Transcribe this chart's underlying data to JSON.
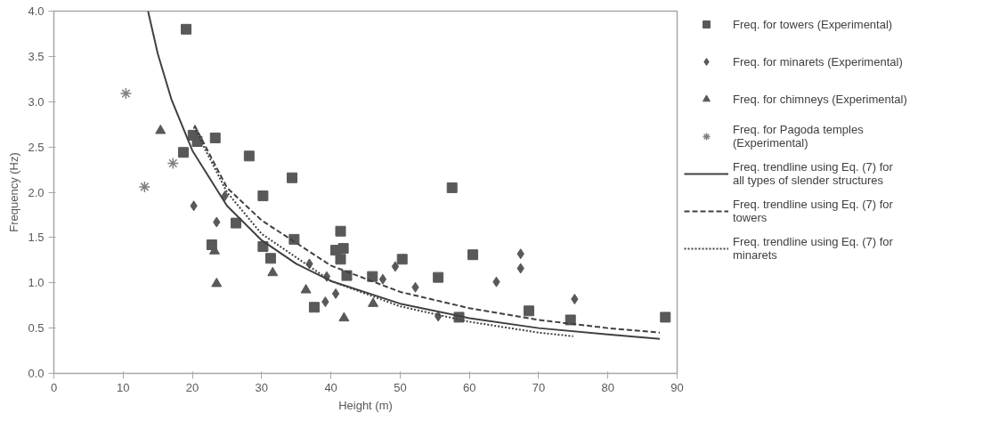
{
  "chart_data": {
    "type": "scatter",
    "xlabel": "Height (m)",
    "ylabel": "Frequency (Hz)",
    "xlim": [
      0,
      90
    ],
    "ylim": [
      0,
      4.0
    ],
    "xticks": [
      0,
      10,
      20,
      30,
      40,
      50,
      60,
      70,
      80,
      90
    ],
    "yticks": [
      {
        "value": 0,
        "label": "0.0"
      },
      {
        "value": 0.5,
        "label": "0.5"
      },
      {
        "value": 1,
        "label": "1.0"
      },
      {
        "value": 1.5,
        "label": "1.5"
      },
      {
        "value": 2,
        "label": "2.0"
      },
      {
        "value": 2.5,
        "label": "2.5"
      },
      {
        "value": 3,
        "label": "3.0"
      },
      {
        "value": 3.5,
        "label": "3.5"
      },
      {
        "value": 4,
        "label": "4.0"
      }
    ],
    "grid": false,
    "legend": "right",
    "series": [
      {
        "name": "Freq. for towers (Experimental)",
        "marker": "square",
        "color": "#595959",
        "x": [
          19.1,
          20.1,
          20.7,
          23.3,
          18.7,
          28.2,
          34.4,
          30.2,
          26.3,
          22.8,
          34.7,
          30.2,
          31.3,
          41.4,
          40.7,
          41.8,
          41.4,
          50.3,
          42.3,
          46.0,
          37.6,
          55.5,
          57.5,
          60.5,
          58.5,
          68.6,
          74.6,
          88.3
        ],
        "values": [
          3.8,
          2.63,
          2.56,
          2.6,
          2.44,
          2.4,
          2.16,
          1.96,
          1.66,
          1.42,
          1.48,
          1.4,
          1.27,
          1.57,
          1.36,
          1.38,
          1.26,
          1.26,
          1.08,
          1.07,
          0.73,
          1.06,
          2.05,
          1.31,
          0.62,
          0.69,
          0.59,
          0.62
        ]
      },
      {
        "name": "Freq. for minarets (Experimental)",
        "marker": "diamond",
        "color": "#595959",
        "x": [
          20.2,
          23.5,
          24.7,
          39.2,
          40.7,
          47.5,
          49.3,
          52.2,
          55.5,
          63.9,
          36.9,
          39.4,
          67.4,
          67.4,
          75.2
        ],
        "values": [
          1.85,
          1.67,
          1.96,
          0.79,
          0.88,
          1.04,
          1.18,
          0.95,
          0.63,
          1.01,
          1.21,
          1.07,
          1.32,
          1.16,
          0.82
        ]
      },
      {
        "name": "Freq. for chimneys (Experimental)",
        "marker": "triangle",
        "color": "#595959",
        "x": [
          15.4,
          23.2,
          23.5,
          31.6,
          36.4,
          41.9,
          46.1
        ],
        "values": [
          2.68,
          1.35,
          0.99,
          1.11,
          0.92,
          0.61,
          0.77
        ]
      },
      {
        "name": "Freq. for Pagoda temples (Experimental)",
        "marker": "cross",
        "color": "#808080",
        "x": [
          10.4,
          17.2,
          13.1
        ],
        "values": [
          3.09,
          2.32,
          2.06
        ]
      },
      {
        "name": "Freq. trendline using Eq. (7) for all types of slender structures",
        "type": "line",
        "line_style": "solid",
        "color": "#404040",
        "x": [
          13.6,
          15,
          17,
          20,
          25,
          30,
          35,
          40,
          50,
          60,
          70,
          80,
          87.5
        ],
        "values": [
          4.0,
          3.53,
          3.02,
          2.46,
          1.85,
          1.47,
          1.21,
          1.02,
          0.77,
          0.61,
          0.5,
          0.43,
          0.38
        ]
      },
      {
        "name": "Freq. trendline using Eq. (7) for towers",
        "type": "line",
        "line_style": "dashed",
        "color": "#404040",
        "x": [
          20.3,
          25,
          30,
          40,
          50,
          60,
          70,
          80,
          87.5
        ],
        "values": [
          2.74,
          2.05,
          1.69,
          1.19,
          0.9,
          0.72,
          0.59,
          0.5,
          0.45
        ]
      },
      {
        "name": "Freq. trendline using Eq. (7) for minarets",
        "type": "line",
        "line_style": "dotted",
        "color": "#404040",
        "x": [
          20.2,
          25,
          30,
          40,
          50,
          60,
          70,
          75
        ],
        "values": [
          2.72,
          2.0,
          1.54,
          1.02,
          0.74,
          0.57,
          0.45,
          0.41
        ]
      }
    ]
  }
}
